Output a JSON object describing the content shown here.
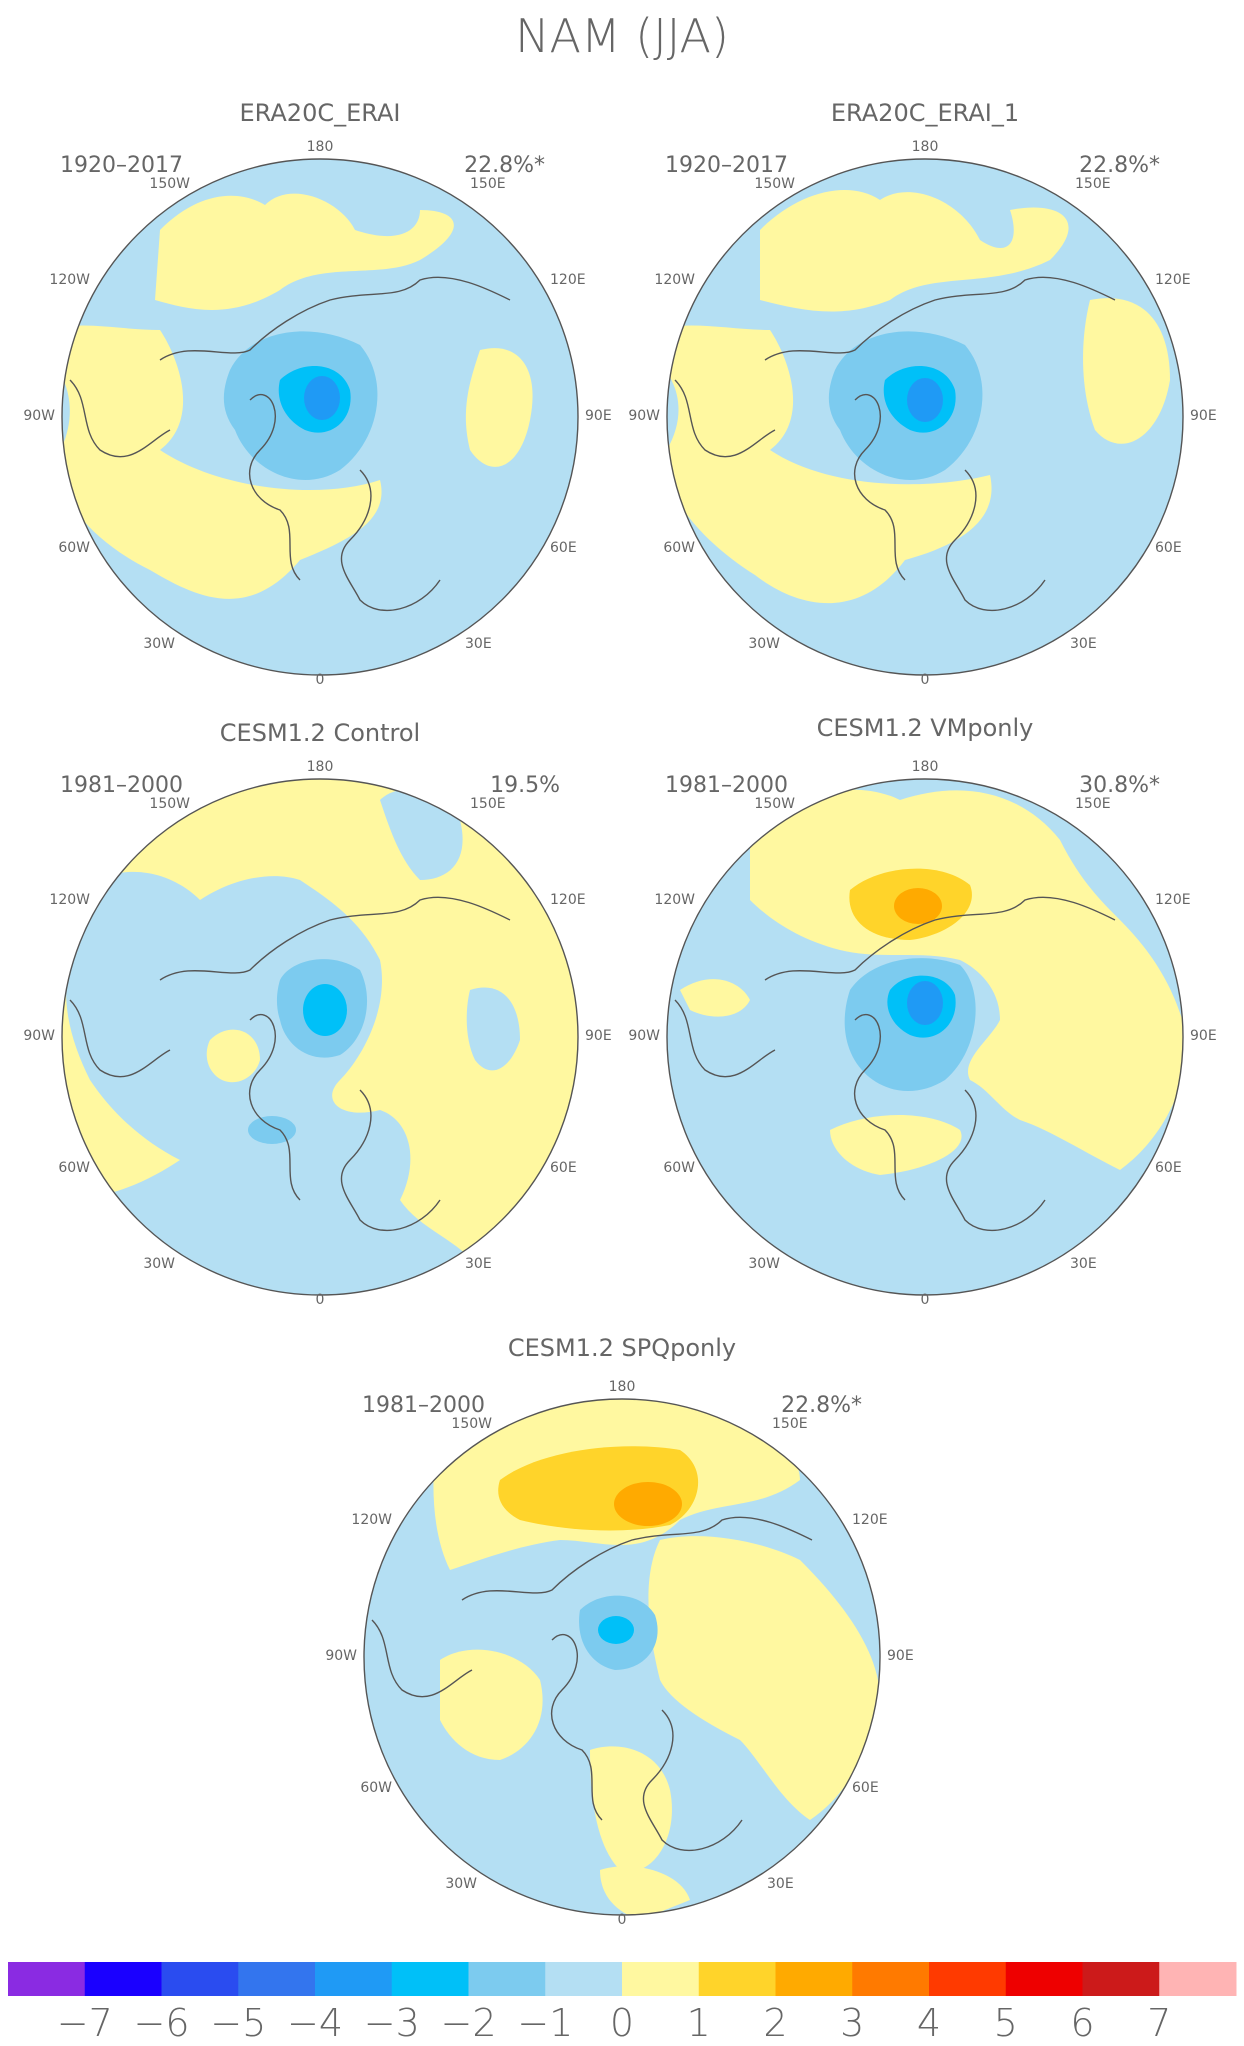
{
  "figure_title": "NAM (JJA)",
  "longitude_labels": [
    "180",
    "150E",
    "120E",
    "90E",
    "60E",
    "30E",
    "0",
    "30W",
    "60W",
    "90W",
    "120W",
    "150W"
  ],
  "panels": [
    {
      "title": "ERA20C_ERAI",
      "period": "1920–2017",
      "variance": "22.8%*"
    },
    {
      "title": "ERA20C_ERAI_1",
      "period": "1920–2017",
      "variance": "22.8%*"
    },
    {
      "title": "CESM1.2 Control",
      "period": "1981–2000",
      "variance": "19.5%"
    },
    {
      "title": "CESM1.2 VMponly",
      "period": "1981–2000",
      "variance": "30.8%*"
    },
    {
      "title": "CESM1.2 SPQponly",
      "period": "1981–2000",
      "variance": "22.8%*"
    }
  ],
  "colorbar": {
    "colors": [
      "#8a2be2",
      "#1a00ff",
      "#2a4cf0",
      "#3375ee",
      "#1f9af5",
      "#00c0f8",
      "#7ccbef",
      "#b4dff3",
      "#fff8a0",
      "#ffd42a",
      "#ffaa00",
      "#ff7a00",
      "#ff3a00",
      "#ee0000",
      "#cc1a1a",
      "#ffb4b4"
    ],
    "labels": [
      "−7",
      "−6",
      "−5",
      "−4",
      "−3",
      "−2",
      "−1",
      "0",
      "1",
      "2",
      "3",
      "4",
      "5",
      "6",
      "7"
    ]
  }
}
